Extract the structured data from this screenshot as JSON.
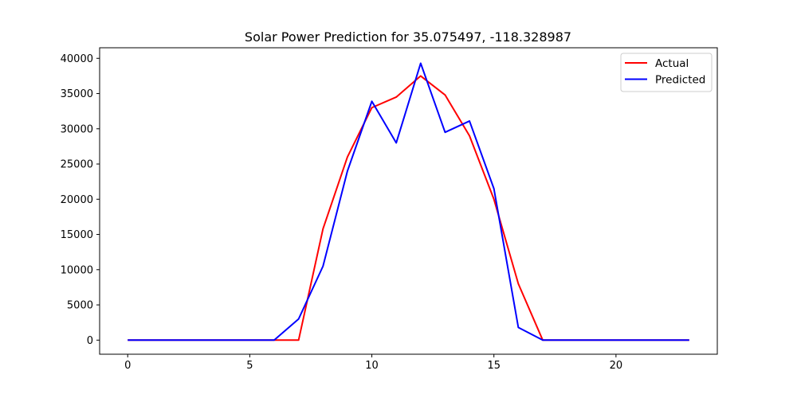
{
  "chart_data": {
    "type": "line",
    "title": "Solar Power Prediction for 35.075497, -118.328987",
    "xlabel": "",
    "ylabel": "",
    "xlim": [
      -1.15,
      24.15
    ],
    "ylim": [
      -2000,
      41500
    ],
    "xticks": [
      0,
      5,
      10,
      15,
      20
    ],
    "yticks": [
      0,
      5000,
      10000,
      15000,
      20000,
      25000,
      30000,
      35000,
      40000
    ],
    "grid": false,
    "legend_position": "top-right",
    "x": [
      0,
      1,
      2,
      3,
      4,
      5,
      6,
      7,
      8,
      9,
      10,
      11,
      12,
      13,
      14,
      15,
      16,
      17,
      18,
      19,
      20,
      21,
      22,
      23
    ],
    "series": [
      {
        "name": "Actual",
        "color": "#ff0000",
        "values": [
          0,
          0,
          0,
          0,
          0,
          0,
          0,
          0,
          15800,
          26000,
          33000,
          34500,
          37500,
          34800,
          29000,
          20000,
          8000,
          0,
          0,
          0,
          0,
          0,
          0,
          0
        ]
      },
      {
        "name": "Predicted",
        "color": "#0000ff",
        "values": [
          0,
          0,
          0,
          0,
          0,
          0,
          0,
          3000,
          10500,
          24000,
          33900,
          28000,
          39300,
          29500,
          31100,
          21500,
          1800,
          0,
          0,
          0,
          0,
          0,
          0,
          0
        ]
      }
    ]
  }
}
